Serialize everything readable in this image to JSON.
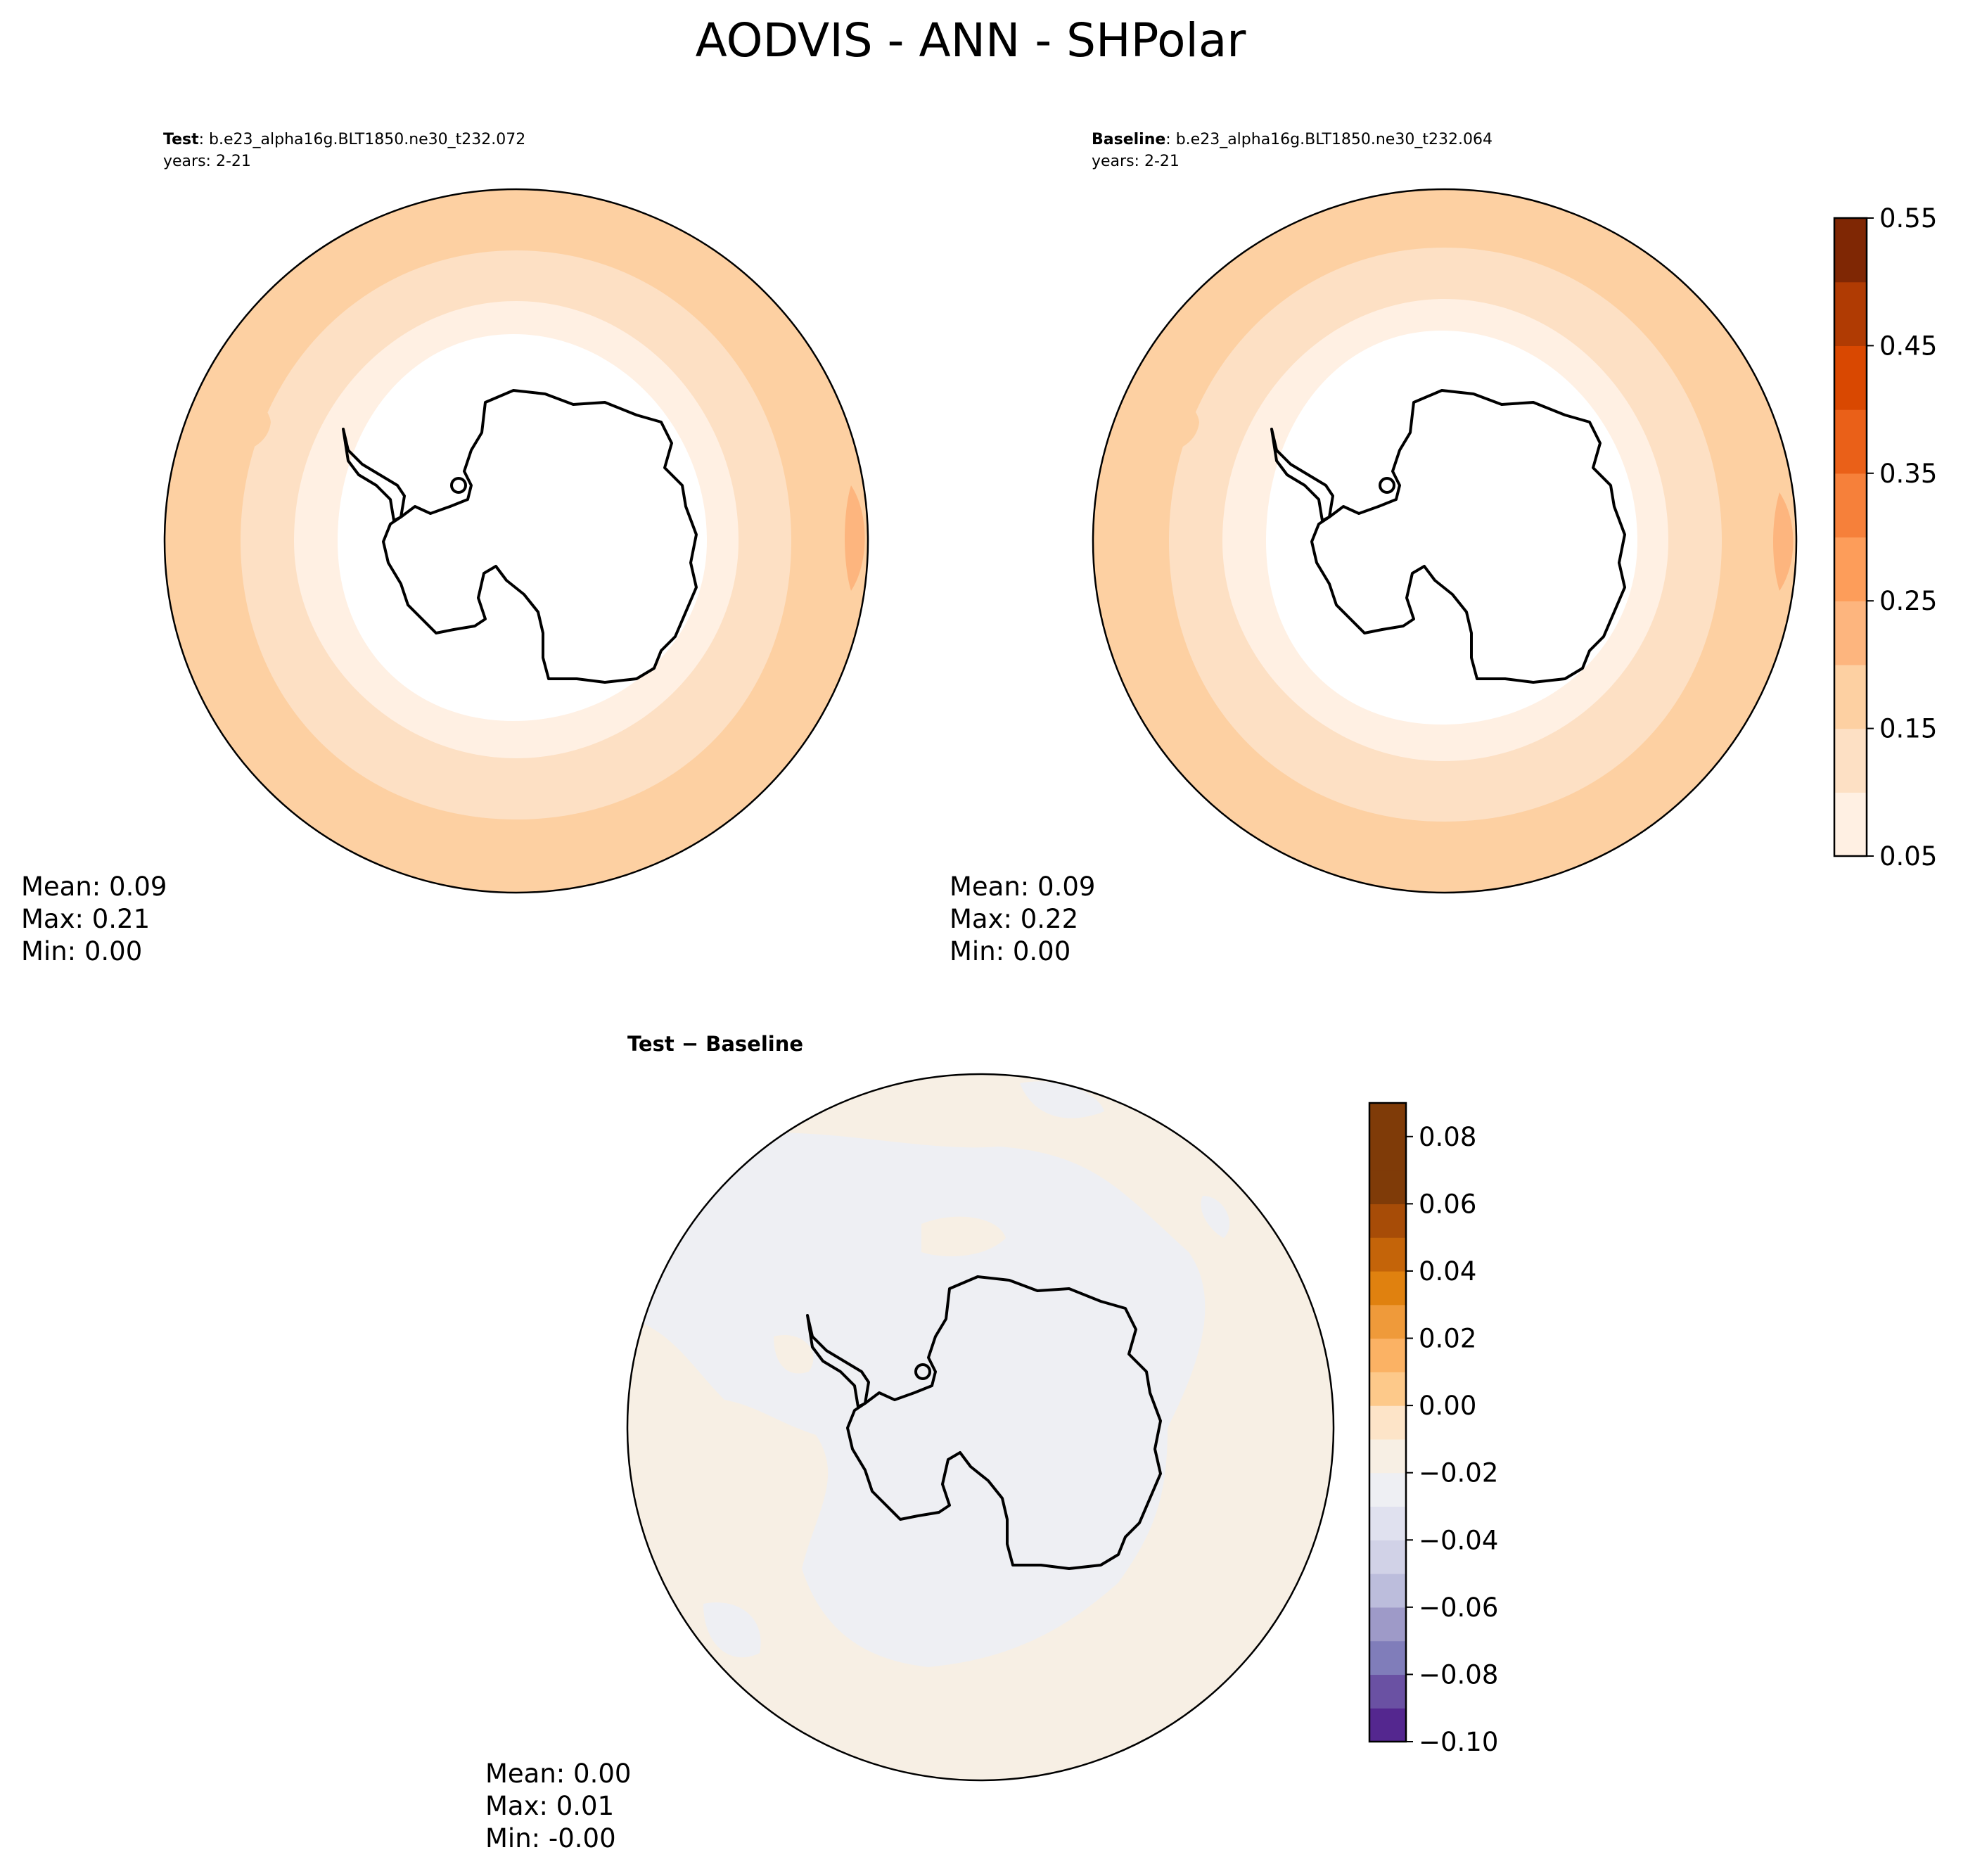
{
  "figure": {
    "title": "AODVIS - ANN - SHPolar"
  },
  "panels": {
    "test": {
      "name_label": "Test",
      "case_name": ": b.e23_alpha16g.BLT1850.ne30_t232.072",
      "years": "years: 2-21",
      "stats": {
        "mean": "Mean:  0.09",
        "max": "Max:  0.21",
        "min": "Min:  0.00"
      }
    },
    "baseline": {
      "name_label": "Baseline",
      "case_name": ": b.e23_alpha16g.BLT1850.ne30_t232.064",
      "years": "years: 2-21",
      "stats": {
        "mean": "Mean:  0.09",
        "max": "Max:  0.22",
        "min": "Min:  0.00"
      }
    },
    "diff": {
      "title": "Test − Baseline",
      "stats": {
        "mean": "Mean:  0.00",
        "max": "Max:  0.01",
        "min": "Min: -0.00"
      }
    }
  },
  "colors": {
    "aod_levels": [
      "#fff0e3",
      "#fde0c4",
      "#fdd0a2",
      "#fdb57e",
      "#fd9d5a",
      "#f6803a",
      "#ea6018",
      "#d94801",
      "#b03b03",
      "#7f2704"
    ],
    "diff_neg": [
      "#3f007d",
      "#54278f",
      "#6a51a3",
      "#807dba",
      "#9e9ac8",
      "#bcbddc",
      "#d1d2e7",
      "#e0e1ef",
      "#eeeff3"
    ],
    "diff_pos": [
      "#f7efe4",
      "#fde4c8",
      "#fdc98a",
      "#fbb264",
      "#ef9a3a",
      "#e0810f",
      "#c46409",
      "#a74c07",
      "#7f3b08"
    ],
    "coast": "#000000"
  },
  "chart_data": [
    {
      "type": "heatmap",
      "panel": "Test",
      "projection": "south polar stereographic",
      "field": "AODVIS annual mean",
      "colorbar": {
        "ticks": [
          "0.05",
          "0.15",
          "0.25",
          "0.35",
          "0.45",
          "0.55"
        ],
        "range": [
          0.05,
          0.55
        ],
        "interval": 0.05
      },
      "zones": [
        {
          "region": "Antarctic interior",
          "value_range": [
            0.0,
            0.05
          ]
        },
        {
          "region": "inner ring",
          "value_range": [
            0.05,
            0.1
          ]
        },
        {
          "region": "middle ring",
          "value_range": [
            0.1,
            0.15
          ]
        },
        {
          "region": "outer ring",
          "value_range": [
            0.15,
            0.2
          ]
        },
        {
          "region": "east edge patch",
          "value_range": [
            0.2,
            0.25
          ]
        }
      ]
    },
    {
      "type": "heatmap",
      "panel": "Baseline",
      "projection": "south polar stereographic",
      "field": "AODVIS annual mean",
      "colorbar": {
        "ticks": [
          "0.05",
          "0.15",
          "0.25",
          "0.35",
          "0.45",
          "0.55"
        ],
        "range": [
          0.05,
          0.55
        ],
        "interval": 0.05
      },
      "zones": [
        {
          "region": "Antarctic interior",
          "value_range": [
            0.0,
            0.05
          ]
        },
        {
          "region": "inner ring",
          "value_range": [
            0.05,
            0.1
          ]
        },
        {
          "region": "middle ring",
          "value_range": [
            0.1,
            0.15
          ]
        },
        {
          "region": "outer ring",
          "value_range": [
            0.15,
            0.2
          ]
        },
        {
          "region": "east edge patch",
          "value_range": [
            0.2,
            0.25
          ]
        }
      ]
    },
    {
      "type": "heatmap",
      "panel": "Test − Baseline",
      "projection": "south polar stereographic",
      "field": "AODVIS difference",
      "colorbar": {
        "ticks": [
          "−0.10",
          "−0.08",
          "−0.06",
          "−0.04",
          "−0.02",
          "0.00",
          "0.02",
          "0.04",
          "0.06",
          "0.08"
        ],
        "range": [
          -0.1,
          0.09
        ],
        "interval": 0.01
      },
      "zones": [
        {
          "region": "ocean background",
          "value_range": [
            0.0,
            0.01
          ]
        },
        {
          "region": "Antarctica and scattered patches",
          "value_range": [
            -0.01,
            0.0
          ]
        }
      ]
    }
  ]
}
